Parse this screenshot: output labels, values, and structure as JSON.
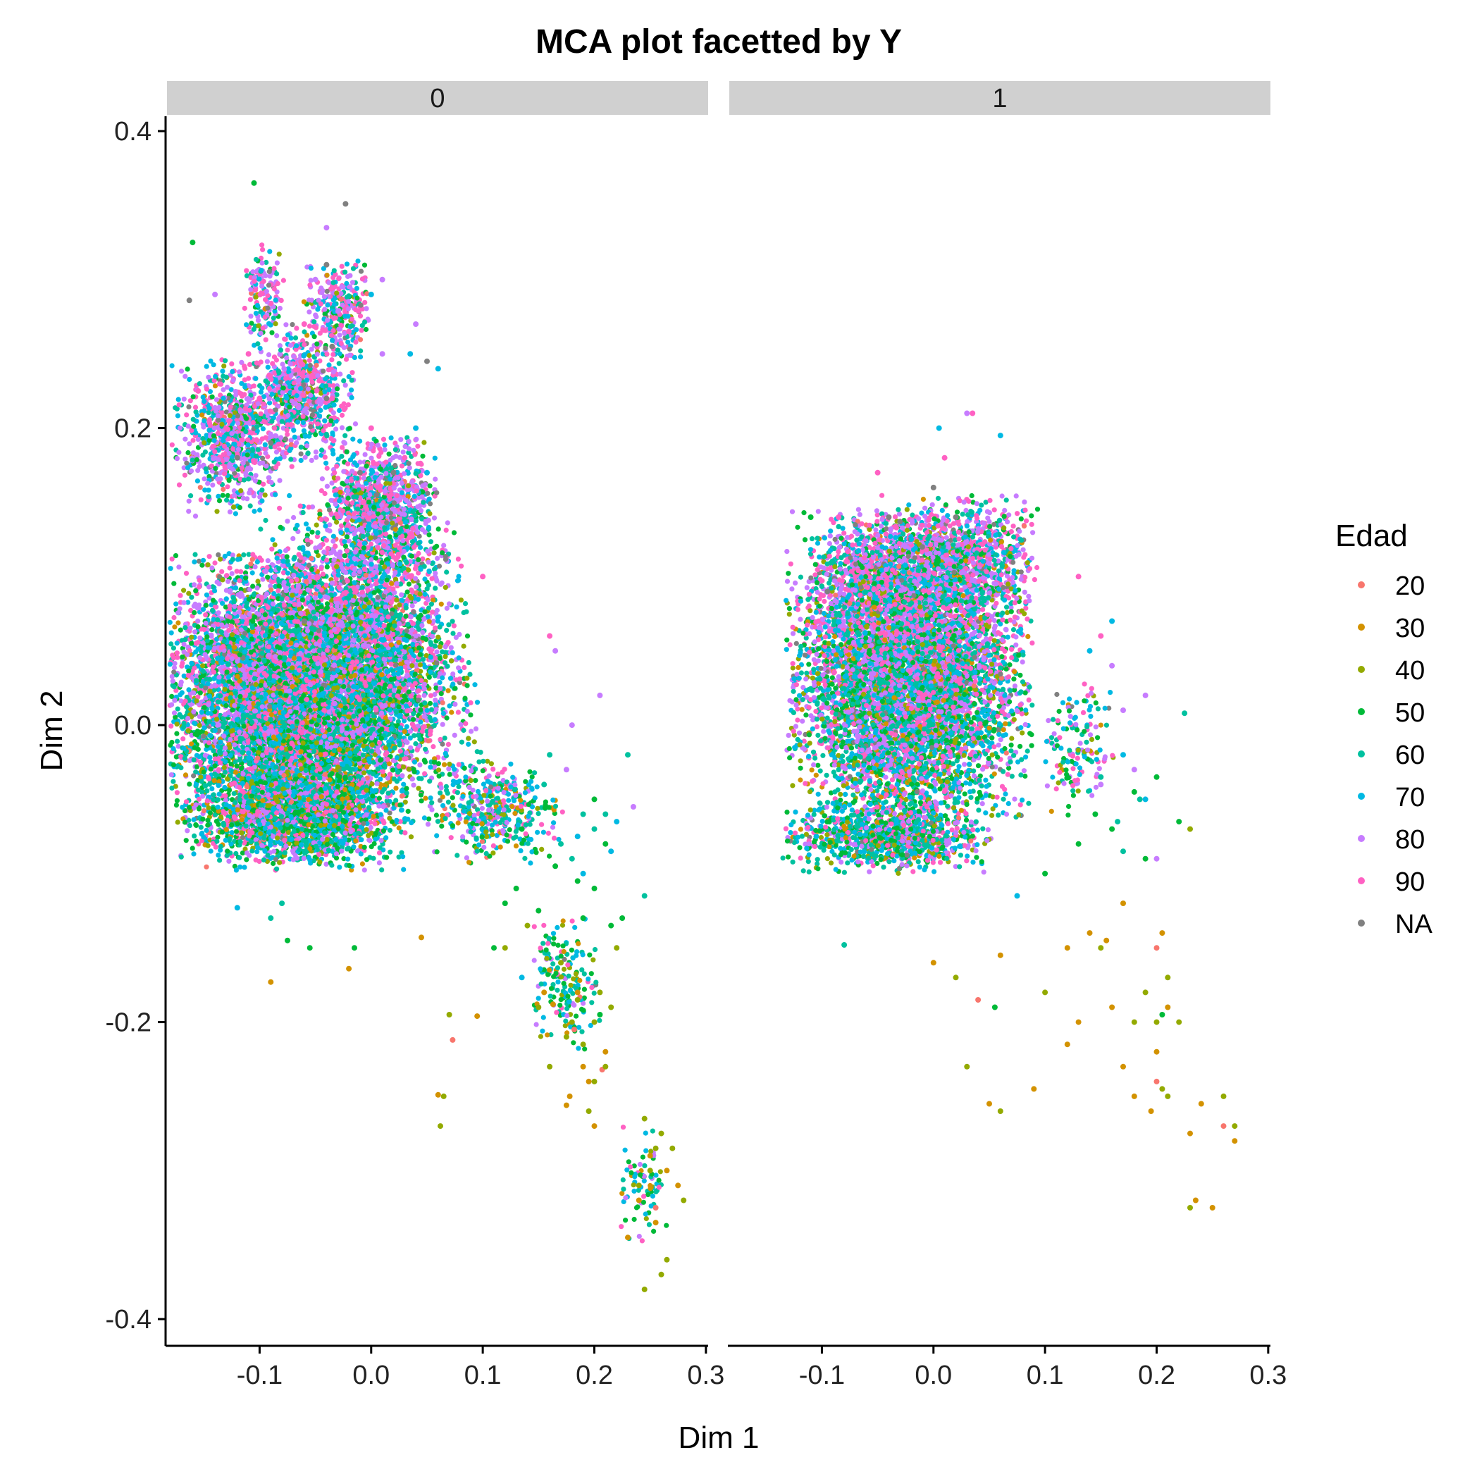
{
  "chart_data": {
    "type": "scatter",
    "title": "MCA plot facetted by Y",
    "xlabel": "Dim 1",
    "ylabel": "Dim 2",
    "xlim": [
      -0.183,
      0.302
    ],
    "ylim": [
      -0.418,
      0.41
    ],
    "x_ticks": [
      -0.1,
      0.0,
      0.1,
      0.2,
      0.3
    ],
    "x_tick_labels": [
      "-0.1",
      "0.0",
      "0.1",
      "0.2",
      "0.3"
    ],
    "y_ticks": [
      -0.4,
      -0.2,
      0.0,
      0.2,
      0.4
    ],
    "y_tick_labels": [
      "-0.4",
      "-0.2",
      "0.0",
      "0.2",
      "0.4"
    ],
    "grid": false,
    "legend": {
      "title": "Edad",
      "placement": "right",
      "entries": [
        {
          "label": "20",
          "color": "#F8766D"
        },
        {
          "label": "30",
          "color": "#D39200"
        },
        {
          "label": "40",
          "color": "#93AA00"
        },
        {
          "label": "50",
          "color": "#00BA38"
        },
        {
          "label": "60",
          "color": "#00C19F"
        },
        {
          "label": "70",
          "color": "#00B9E3"
        },
        {
          "label": "80",
          "color": "#C77CFF"
        },
        {
          "label": "90",
          "color": "#FF61C3"
        },
        {
          "label": "NA",
          "color": "#808080"
        }
      ]
    },
    "facets": [
      {
        "label": "0",
        "series": [
          {
            "name": "20",
            "points": [
              [
                0.073,
                -0.212
              ],
              [
                0.255,
                -0.325
              ],
              [
                0.207,
                -0.232
              ],
              [
                0.182,
                -0.205
              ]
            ]
          },
          {
            "name": "30",
            "points": [
              [
                -0.09,
                -0.173
              ],
              [
                -0.02,
                -0.164
              ],
              [
                0.06,
                -0.249
              ],
              [
                0.095,
                -0.196
              ],
              [
                0.175,
                -0.256
              ],
              [
                0.195,
                -0.24
              ],
              [
                0.2,
                -0.27
              ],
              [
                0.23,
                -0.345
              ],
              [
                0.255,
                -0.335
              ],
              [
                0.265,
                -0.3
              ],
              [
                0.275,
                -0.31
              ],
              [
                0.163,
                -0.188
              ],
              [
                0.185,
                -0.18
              ],
              [
                0.21,
                -0.22
              ],
              [
                0.24,
                -0.32
              ],
              [
                0.25,
                -0.29
              ],
              [
                0.19,
                -0.23
              ],
              [
                0.178,
                -0.25
              ],
              [
                0.155,
                -0.18
              ],
              [
                0.045,
                -0.143
              ]
            ]
          },
          {
            "name": "40",
            "points": [
              [
                0.065,
                -0.25
              ],
              [
                0.062,
                -0.27
              ],
              [
                0.07,
                -0.195
              ],
              [
                0.12,
                -0.15
              ],
              [
                0.15,
                -0.19
              ],
              [
                0.16,
                -0.23
              ],
              [
                0.18,
                -0.2
              ],
              [
                0.2,
                -0.2
              ],
              [
                0.205,
                -0.18
              ],
              [
                0.21,
                -0.23
              ],
              [
                0.22,
                -0.15
              ],
              [
                0.245,
                -0.265
              ],
              [
                0.25,
                -0.3
              ],
              [
                0.26,
                -0.275
              ],
              [
                0.265,
                -0.36
              ],
              [
                0.27,
                -0.285
              ],
              [
                0.28,
                -0.32
              ],
              [
                0.245,
                -0.38
              ],
              [
                0.26,
                -0.37
              ],
              [
                0.185,
                -0.185
              ],
              [
                0.195,
                -0.26
              ],
              [
                0.175,
                -0.21
              ],
              [
                0.2,
                -0.24
              ],
              [
                0.17,
                -0.16
              ],
              [
                0.14,
                -0.135
              ],
              [
                0.19,
                -0.215
              ],
              [
                0.215,
                -0.19
              ],
              [
                0.255,
                -0.285
              ],
              [
                0.24,
                -0.31
              ]
            ]
          },
          {
            "name": "50",
            "points": [
              [
                -0.105,
                0.365
              ],
              [
                -0.16,
                0.325
              ],
              [
                -0.075,
                -0.145
              ],
              [
                -0.055,
                -0.15
              ],
              [
                -0.015,
                -0.15
              ],
              [
                0.12,
                -0.12
              ],
              [
                0.13,
                -0.11
              ],
              [
                0.15,
                -0.125
              ],
              [
                0.19,
                -0.13
              ],
              [
                0.2,
                -0.11
              ],
              [
                0.21,
                -0.08
              ],
              [
                0.165,
                -0.095
              ],
              [
                0.135,
                -0.07
              ],
              [
                0.185,
                -0.105
              ],
              [
                0.205,
                -0.195
              ],
              [
                0.215,
                -0.135
              ],
              [
                0.11,
                -0.15
              ],
              [
                0.225,
                -0.13
              ],
              [
                0.2,
                -0.05
              ]
            ]
          },
          {
            "name": "60",
            "points": [
              [
                -0.09,
                -0.13
              ],
              [
                -0.08,
                -0.12
              ],
              [
                0.17,
                -0.08
              ],
              [
                0.19,
                -0.06
              ],
              [
                0.2,
                -0.07
              ],
              [
                0.18,
                -0.09
              ],
              [
                0.155,
                -0.04
              ],
              [
                0.21,
                -0.06
              ],
              [
                0.23,
                -0.02
              ],
              [
                0.245,
                -0.115
              ],
              [
                0.16,
                -0.02
              ]
            ]
          },
          {
            "name": "70",
            "points": [
              [
                -0.12,
                -0.123
              ],
              [
                0.135,
                -0.17
              ],
              [
                0.05,
                0.17
              ],
              [
                0.035,
                0.25
              ],
              [
                0.0,
                0.29
              ],
              [
                0.04,
                0.2
              ],
              [
                0.06,
                0.24
              ],
              [
                0.185,
                -0.075
              ],
              [
                0.215,
                -0.085
              ],
              [
                0.22,
                -0.065
              ],
              [
                0.19,
                -0.1
              ]
            ]
          },
          {
            "name": "80",
            "points": [
              [
                -0.04,
                0.335
              ],
              [
                -0.14,
                0.29
              ],
              [
                0.01,
                0.3
              ],
              [
                0.205,
                0.02
              ],
              [
                0.235,
                -0.055
              ],
              [
                0.175,
                -0.03
              ],
              [
                0.165,
                0.05
              ],
              [
                0.18,
                0.0
              ],
              [
                0.01,
                0.25
              ],
              [
                0.04,
                0.27
              ],
              [
                -0.05,
                0.3
              ]
            ]
          },
          {
            "name": "90",
            "points": [
              [
                -0.155,
                0.225
              ],
              [
                -0.13,
                0.2
              ],
              [
                -0.1,
                0.22
              ],
              [
                -0.035,
                0.22
              ],
              [
                0.0,
                0.2
              ],
              [
                0.03,
                0.18
              ],
              [
                0.1,
                0.1
              ],
              [
                0.16,
                0.06
              ],
              [
                -0.11,
                0.25
              ],
              [
                -0.06,
                0.27
              ],
              [
                -0.02,
                0.265
              ]
            ]
          },
          {
            "name": "NA",
            "points": [
              [
                -0.163,
                0.286
              ],
              [
                -0.023,
                0.351
              ],
              [
                -0.04,
                0.31
              ],
              [
                -0.035,
                0.255
              ],
              [
                -0.01,
                0.17
              ],
              [
                0.02,
                0.17
              ],
              [
                -0.06,
                0.07
              ],
              [
                -0.12,
                0.18
              ],
              [
                0.05,
                0.245
              ],
              [
                -0.09,
                0.19
              ],
              [
                -0.04,
                0.22
              ],
              [
                0.005,
                0.155
              ]
            ]
          }
        ]
      },
      {
        "label": "1",
        "series": [
          {
            "name": "20",
            "points": [
              [
                0.04,
                -0.185
              ],
              [
                0.2,
                -0.15
              ],
              [
                0.2,
                -0.24
              ],
              [
                0.26,
                -0.27
              ]
            ]
          },
          {
            "name": "30",
            "points": [
              [
                0.0,
                -0.16
              ],
              [
                0.06,
                -0.155
              ],
              [
                0.09,
                -0.245
              ],
              [
                0.12,
                -0.15
              ],
              [
                0.14,
                -0.14
              ],
              [
                0.13,
                -0.2
              ],
              [
                0.16,
                -0.19
              ],
              [
                0.17,
                -0.23
              ],
              [
                0.2,
                -0.22
              ],
              [
                0.21,
                -0.19
              ],
              [
                0.23,
                -0.275
              ],
              [
                0.24,
                -0.255
              ],
              [
                0.25,
                -0.325
              ],
              [
                0.235,
                -0.32
              ],
              [
                0.27,
                -0.28
              ],
              [
                0.18,
                -0.25
              ],
              [
                0.17,
                -0.12
              ],
              [
                0.205,
                -0.14
              ],
              [
                0.195,
                -0.26
              ],
              [
                0.05,
                -0.255
              ],
              [
                0.155,
                -0.145
              ],
              [
                0.12,
                -0.215
              ]
            ]
          },
          {
            "name": "40",
            "points": [
              [
                0.03,
                -0.23
              ],
              [
                0.06,
                -0.26
              ],
              [
                0.1,
                -0.18
              ],
              [
                0.15,
                -0.15
              ],
              [
                0.18,
                -0.2
              ],
              [
                0.2,
                -0.2
              ],
              [
                0.21,
                -0.17
              ],
              [
                0.22,
                -0.2
              ],
              [
                0.23,
                -0.325
              ],
              [
                0.26,
                -0.25
              ],
              [
                0.27,
                -0.27
              ],
              [
                0.205,
                -0.245
              ],
              [
                0.19,
                -0.18
              ],
              [
                0.21,
                -0.25
              ],
              [
                0.23,
                -0.07
              ],
              [
                0.02,
                -0.17
              ]
            ]
          },
          {
            "name": "50",
            "points": [
              [
                -0.11,
                0.14
              ],
              [
                0.055,
                -0.19
              ],
              [
                0.1,
                -0.1
              ],
              [
                0.13,
                -0.08
              ],
              [
                0.16,
                -0.07
              ],
              [
                0.19,
                -0.09
              ],
              [
                0.22,
                -0.065
              ],
              [
                0.2,
                -0.035
              ],
              [
                0.18,
                -0.045
              ],
              [
                0.145,
                -0.06
              ],
              [
                0.205,
                -0.195
              ]
            ]
          },
          {
            "name": "60",
            "points": [
              [
                0.225,
                0.008
              ],
              [
                -0.08,
                -0.148
              ],
              [
                0.165,
                -0.065
              ],
              [
                0.185,
                -0.05
              ],
              [
                0.15,
                -0.035
              ],
              [
                0.17,
                -0.085
              ]
            ]
          },
          {
            "name": "70",
            "points": [
              [
                0.005,
                0.2
              ],
              [
                0.06,
                0.195
              ],
              [
                -0.105,
                -0.075
              ],
              [
                0.19,
                -0.05
              ],
              [
                0.17,
                -0.02
              ],
              [
                0.075,
                -0.115
              ],
              [
                0.16,
                0.07
              ],
              [
                0.14,
                0.05
              ]
            ]
          },
          {
            "name": "80",
            "points": [
              [
                0.03,
                0.21
              ],
              [
                0.19,
                0.02
              ],
              [
                0.2,
                -0.09
              ],
              [
                0.16,
                0.04
              ],
              [
                0.17,
                0.01
              ],
              [
                0.15,
                -0.04
              ],
              [
                0.18,
                -0.03
              ]
            ]
          },
          {
            "name": "90",
            "points": [
              [
                0.035,
                0.21
              ],
              [
                -0.05,
                0.17
              ],
              [
                0.01,
                0.18
              ],
              [
                0.13,
                0.1
              ],
              [
                0.15,
                0.06
              ],
              [
                -0.085,
                0.14
              ]
            ]
          },
          {
            "name": "NA",
            "points": [
              [
                -0.04,
                0.14
              ],
              [
                -0.03,
                0.137
              ],
              [
                0.0,
                0.16
              ],
              [
                -0.095,
                0.09
              ],
              [
                0.02,
                0.14
              ],
              [
                -0.01,
                0.12
              ]
            ]
          }
        ]
      }
    ]
  }
}
